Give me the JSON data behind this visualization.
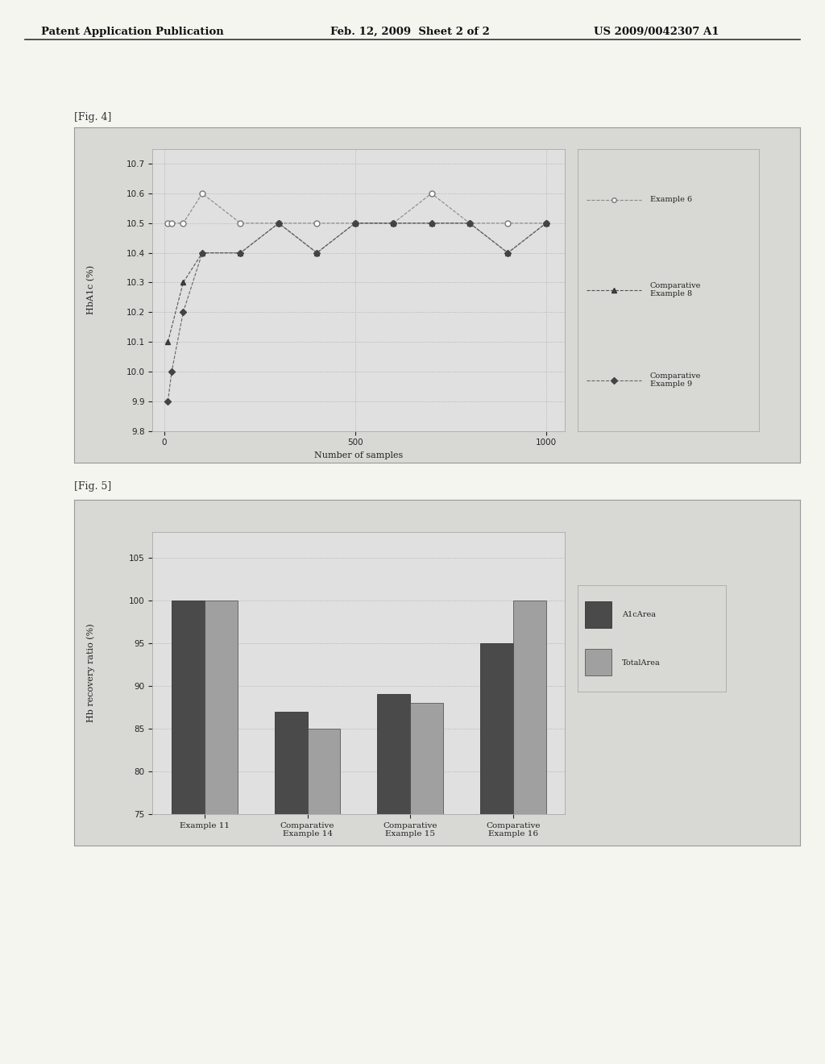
{
  "header_left": "Patent Application Publication",
  "header_mid": "Feb. 12, 2009  Sheet 2 of 2",
  "header_right": "US 2009/0042307 A1",
  "fig4_label": "[Fig. 4]",
  "fig4_xlabel": "Number of samples",
  "fig4_ylabel": "HbA1c (%)",
  "fig4_ylim": [
    9.8,
    10.75
  ],
  "fig4_xlim": [
    -30,
    1050
  ],
  "fig4_yticks": [
    9.8,
    9.9,
    10.0,
    10.1,
    10.2,
    10.3,
    10.4,
    10.5,
    10.6,
    10.7
  ],
  "fig4_xticks": [
    0,
    500,
    1000
  ],
  "example6_x": [
    10,
    20,
    50,
    100,
    200,
    300,
    400,
    500,
    600,
    700,
    800,
    900,
    1000
  ],
  "example6_y": [
    10.5,
    10.5,
    10.5,
    10.6,
    10.5,
    10.5,
    10.5,
    10.5,
    10.5,
    10.6,
    10.5,
    10.5,
    10.5
  ],
  "comp8_x": [
    10,
    50,
    100,
    200,
    300,
    400,
    500,
    600,
    700,
    800,
    900,
    1000
  ],
  "comp8_y": [
    10.1,
    10.3,
    10.4,
    10.4,
    10.5,
    10.4,
    10.5,
    10.5,
    10.5,
    10.5,
    10.4,
    10.5
  ],
  "comp9_x": [
    10,
    20,
    50,
    100,
    200,
    300,
    400,
    500,
    600,
    700,
    800,
    900,
    1000
  ],
  "comp9_y": [
    9.9,
    10.0,
    10.2,
    10.4,
    10.4,
    10.5,
    10.4,
    10.5,
    10.5,
    10.5,
    10.5,
    10.4,
    10.5
  ],
  "fig4_legend": [
    "Example 6",
    "Comparative\nExample 8",
    "Comparative\nExample 9"
  ],
  "fig5_label": "[Fig. 5]",
  "fig5_ylabel": "Hb recovery ratio (%)",
  "fig5_ylim": [
    75,
    108
  ],
  "fig5_yticks": [
    75,
    80,
    85,
    90,
    95,
    100,
    105
  ],
  "fig5_categories": [
    "Example 11",
    "Comparative\nExample 14",
    "Comparative\nExample 15",
    "Comparative\nExample 16"
  ],
  "fig5_a1c_values": [
    100,
    87,
    89,
    95
  ],
  "fig5_total_values": [
    100,
    85,
    88,
    100
  ],
  "fig5_legend": [
    "A1cArea",
    "TotalArea"
  ],
  "fig5_bar_dark": "#4a4a4a",
  "fig5_bar_light": "#a0a0a0",
  "page_bg": "#e8e8e8",
  "chart_bg": "#e0e0e0",
  "line_color_dark": "#555555",
  "grid_color": "#999999",
  "border_color": "#999999"
}
